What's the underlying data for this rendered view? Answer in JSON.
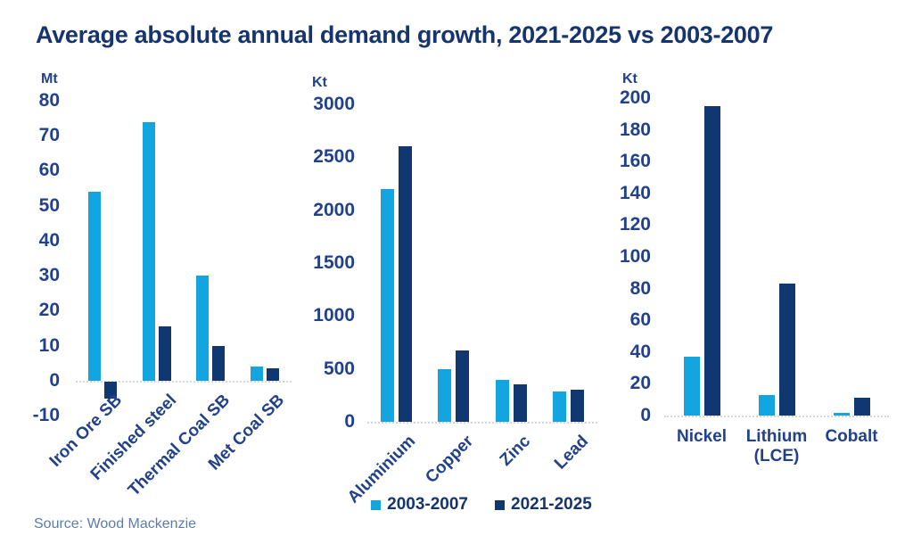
{
  "title": "Average absolute annual demand growth, 2021-2025 vs 2003-2007",
  "source_note": "Source: Wood Mackenzie",
  "colors": {
    "title_text": "#16356e",
    "axis_text": "#21418c",
    "source_text": "#5c7cb0",
    "axis_line": "#d6d6d6",
    "series_2003_2007": "#12a5e0",
    "series_2021_2025": "#103770"
  },
  "legend": [
    {
      "label": "2003-2007",
      "color": "#12a5e0"
    },
    {
      "label": "2021-2025",
      "color": "#103770"
    }
  ],
  "chart_data": [
    {
      "type": "bar",
      "unit": "Mt",
      "ylim": [
        -10,
        80
      ],
      "yticks": [
        80,
        70,
        60,
        50,
        40,
        30,
        20,
        10,
        0,
        -10
      ],
      "categories": [
        "Iron Ore SB",
        "Finished steel",
        "Thermal Coal SB",
        "Met Coal SB"
      ],
      "series": [
        {
          "name": "2003-2007",
          "values": [
            54,
            74,
            30,
            4
          ]
        },
        {
          "name": "2021-2025",
          "values": [
            -5,
            15.5,
            10,
            3.5
          ]
        }
      ],
      "category_label_rotation": 45,
      "grid": false
    },
    {
      "type": "bar",
      "unit": "Kt",
      "ylim": [
        0,
        3000
      ],
      "yticks": [
        3000,
        2500,
        2000,
        1500,
        1000,
        500,
        0
      ],
      "categories": [
        "Aluminium",
        "Copper",
        "Zinc",
        "Lead"
      ],
      "series": [
        {
          "name": "2003-2007",
          "values": [
            2200,
            500,
            400,
            290
          ]
        },
        {
          "name": "2021-2025",
          "values": [
            2600,
            670,
            350,
            300
          ]
        }
      ],
      "category_label_rotation": 45,
      "grid": false
    },
    {
      "type": "bar",
      "unit": "Kt",
      "ylim": [
        0,
        200
      ],
      "yticks": [
        200,
        180,
        160,
        140,
        120,
        100,
        80,
        60,
        40,
        20,
        0
      ],
      "categories": [
        "Nickel",
        "Lithium (LCE)",
        "Cobalt"
      ],
      "series": [
        {
          "name": "2003-2007",
          "values": [
            37,
            13,
            1.5
          ]
        },
        {
          "name": "2021-2025",
          "values": [
            195,
            83,
            11
          ]
        }
      ],
      "category_label_rotation": 0,
      "grid": false
    }
  ],
  "legend_position": "bottom-center"
}
